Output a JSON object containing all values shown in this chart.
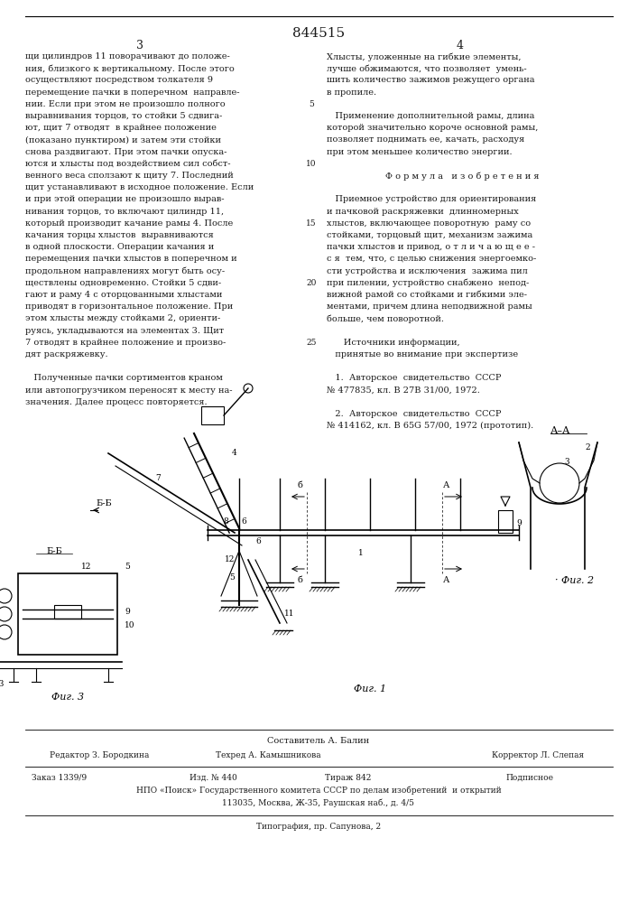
{
  "patent_number": "844515",
  "page_left": "3",
  "page_right": "4",
  "background_color": "#ffffff",
  "text_color": "#1a1a1a",
  "footer_composer": "Составитель А. Балин",
  "footer_editor": "Редактор З. Бородкина",
  "footer_techred": "Техред А. Камышникова",
  "footer_corrector": "Корректор Л. Слепая",
  "footer_order": "Заказ 1339/9",
  "footer_edition": "Изд. № 440",
  "footer_print_run": "Тираж 842",
  "footer_subscription": "Подписное",
  "footer_npo": "НПО «Поиск» Государственного комитета СССР по делам изобретений  и открытий",
  "footer_address": "113035, Москва, Ж-35, Раушская наб., д. 4/5",
  "footer_typography": "Типография, пр. Сапунова, 2",
  "line_numbers": [
    5,
    10,
    15,
    20,
    25
  ],
  "left_column": [
    "щи цилиндров 11 поворачивают до положе-",
    "ния, близкого к вертикальному. После этого",
    "осуществляют посредством толкателя 9",
    "перемещение пачки в поперечном  направле-",
    "нии. Если при этом не произошло полного",
    "выравнивания торцов, то стойки 5 сдвига-",
    "ют, щит 7 отводят  в крайнее положение",
    "(показано пунктиром) и затем эти стойки",
    "снова раздвигают. При этом пачки опуска-",
    "ются и хлысты под воздействием сил собст-",
    "венного веса сползают к щиту 7. Последний",
    "щит устанавливают в исходное положение. Если",
    "и при этой операции не произошло вырав-",
    "нивания торцов, то включают цилиндр 11,",
    "который производит качание рамы 4. После",
    "качания торцы хлыстов  выравниваются",
    "в одной плоскости. Операции качания и",
    "перемещения пачки хлыстов в поперечном и",
    "продольном направлениях могут быть осу-",
    "ществлены одновременно. Стойки 5 сдви-",
    "гают и раму 4 с оторцованными хлыстами",
    "приводят в горизонтальное положение. При",
    "этом хлысты между стойками 2, ориенти-",
    "руясь, укладываются на элементах 3. Щит",
    "7 отводят в крайнее положение и произво-",
    "дят раскряжевку.",
    "",
    "   Полученные пачки сортиментов краном",
    "или автопогрузчиком переносят к месту на-",
    "значения. Далее процесс повторяется."
  ],
  "right_column": [
    "Хлысты, уложенные на гибкие элементы,",
    "лучше обжимаются, что позволяет  умень-",
    "шить количество зажимов режущего органа",
    "в пропиле.",
    "",
    "   Применение дополнительной рамы, длина",
    "которой значительно короче основной рамы,",
    "позволяет поднимать ее, качать, расходуя",
    "при этом меньшее количество энергии.",
    "",
    "Ф о р м у л а   и з о б р е т е н и я",
    "",
    "   Приемное устройство для ориентирования",
    "и пачковой раскряжевки  длинномерных",
    "хлыстов, включающее поворотную  раму со",
    "стойками, торцовый щит, механизм зажима",
    "пачки хлыстов и привод, о т л и ч а ю щ е е -",
    "с я  тем, что, с целью снижения энергоемко-",
    "сти устройства и исключения  зажима пил",
    "при пилении, устройство снабжено  непод-",
    "вижной рамой со стойками и гибкими эле-",
    "ментами, причем длина неподвижной рамы",
    "больше, чем поворотной.",
    "",
    "      Источники информации,",
    "   принятые во внимание при экспертизе",
    "",
    "   1.  Авторское  свидетельство  СССР",
    "№ 477835, кл. В 27В 31/00, 1972.",
    "",
    "   2.  Авторское  свидетельство  СССР",
    "№ 414162, кл. В 65G 57/00, 1972 (прототип)."
  ]
}
